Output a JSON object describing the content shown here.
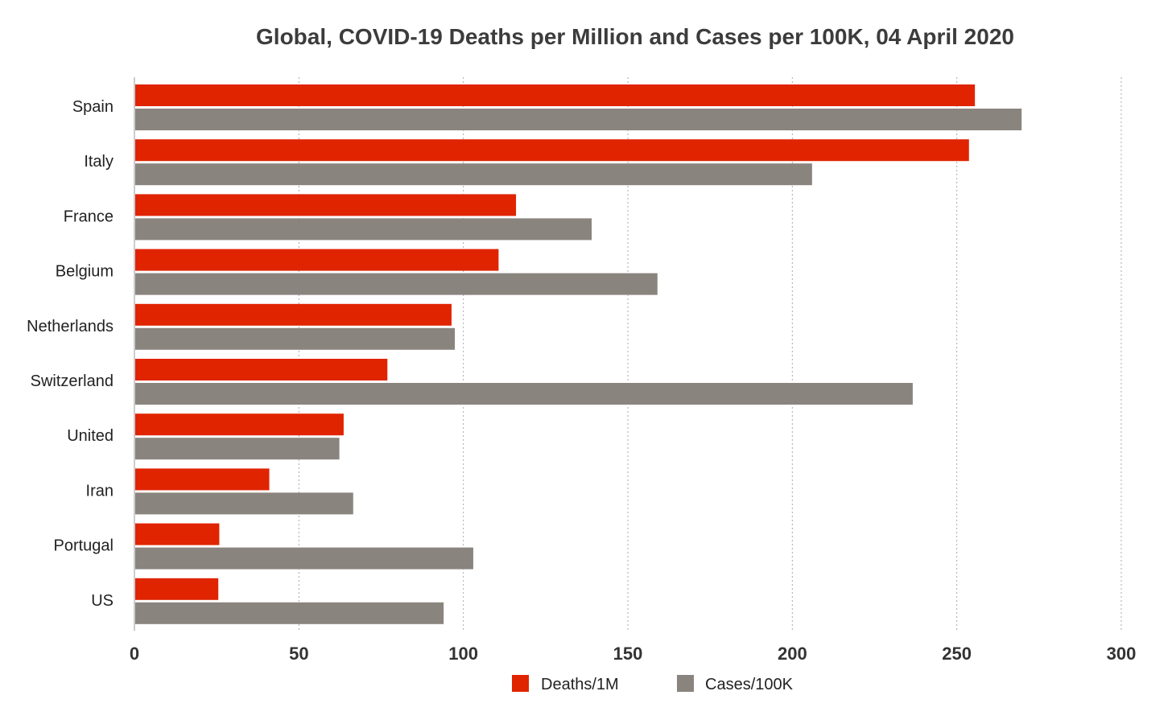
{
  "chart_data": {
    "type": "bar",
    "orientation": "horizontal",
    "title": "Global, COVID-19 Deaths per Million and Cases per 100K, 04 April 2020",
    "xlabel": "",
    "ylabel": "",
    "categories": [
      "Spain",
      "Italy",
      "France",
      "Belgium",
      "Netherlands",
      "Switzerland",
      "United",
      "Iran",
      "Portugal",
      "US"
    ],
    "series": [
      {
        "name": "Deaths/1M",
        "color": "#e02400",
        "values": [
          255.5,
          253.7,
          116,
          110.7,
          96.4,
          76.9,
          63.6,
          41,
          25.8,
          25.5
        ]
      },
      {
        "name": "Cases/100K",
        "color": "#8a847f",
        "values": [
          269.7,
          206,
          139,
          159,
          97.4,
          236.6,
          62.3,
          66.5,
          103,
          94
        ]
      }
    ],
    "xlim": [
      0,
      300
    ],
    "xticks": [
      0,
      50,
      100,
      150,
      200,
      250,
      300
    ],
    "grid": "vertical dotted",
    "legend": "bottom-center"
  }
}
